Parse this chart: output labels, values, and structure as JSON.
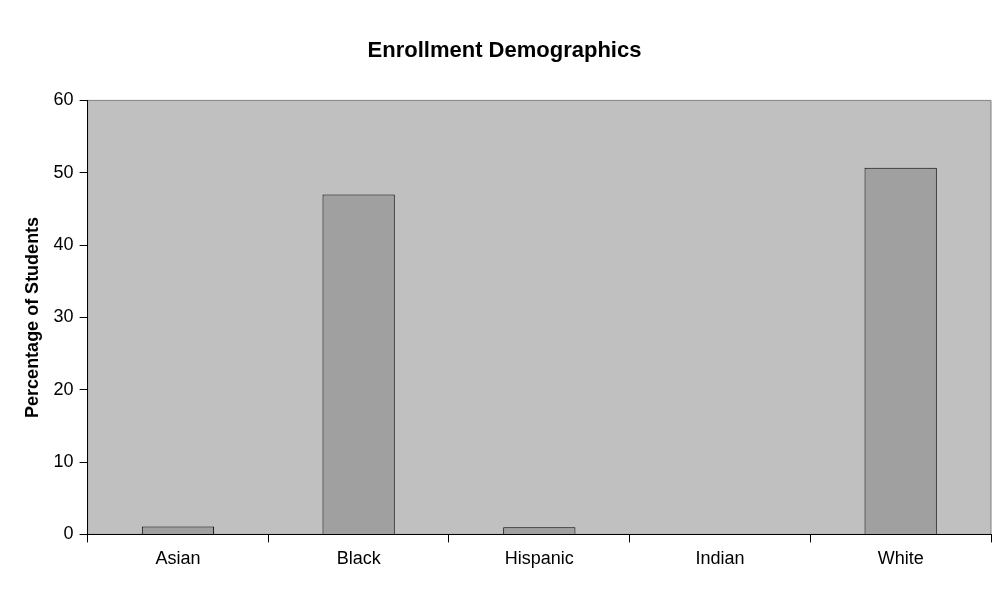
{
  "chart_data": {
    "type": "bar",
    "title": "Enrollment Demographics",
    "ylabel": "Percentage of Students",
    "categories": [
      "Asian",
      "Black",
      "Hispanic",
      "Indian",
      "White"
    ],
    "values": [
      1.1,
      47,
      1,
      0,
      50.7
    ],
    "color": "#a0a0a0",
    "ylim": [
      0,
      60
    ],
    "yticks": [
      0,
      10,
      20,
      30,
      40,
      50,
      60
    ],
    "grid": false,
    "legend": false
  }
}
